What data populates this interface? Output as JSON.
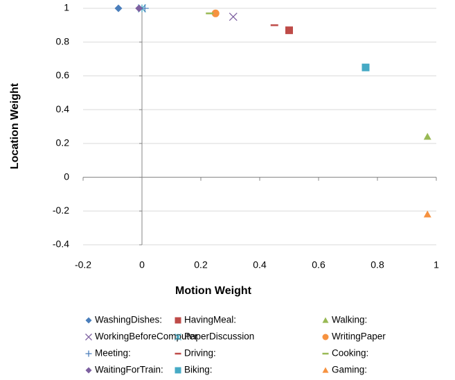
{
  "chart_data": {
    "type": "scatter",
    "x_label": "Motion Weight",
    "y_label": "Location Weight",
    "xlim": [
      -0.2,
      1
    ],
    "ylim": [
      -0.4,
      1
    ],
    "xticks": [
      -0.2,
      0,
      0.2,
      0.4,
      0.6,
      0.8,
      1
    ],
    "yticks": [
      -0.4,
      -0.2,
      0,
      0.2,
      0.4,
      0.6,
      0.8,
      1
    ],
    "grid": true,
    "series": [
      {
        "name": "WashingDishes:",
        "color": "#4a7ebb",
        "marker": "diamond",
        "x": [
          -0.08
        ],
        "values": [
          1
        ]
      },
      {
        "name": "HavingMeal:",
        "color": "#be4b48",
        "marker": "square",
        "x": [
          0.5
        ],
        "values": [
          0.87
        ]
      },
      {
        "name": "Walking:",
        "color": "#98b954",
        "marker": "triangle",
        "x": [
          0.97
        ],
        "values": [
          0.24
        ]
      },
      {
        "name": "WorkingBeforeComputer",
        "color": "#7d60a0",
        "marker": "x",
        "x": [
          0.31
        ],
        "values": [
          0.95
        ]
      },
      {
        "name": "PaperDiscussion",
        "color": "#46aac5",
        "marker": "star",
        "x": [
          0
        ],
        "values": [
          1
        ]
      },
      {
        "name": "WritingPaper",
        "color": "#f69240",
        "marker": "circle",
        "x": [
          0.25
        ],
        "values": [
          0.97
        ]
      },
      {
        "name": "Meeting:",
        "color": "#4a7ebb",
        "marker": "plus",
        "x": [
          0.01
        ],
        "values": [
          1
        ]
      },
      {
        "name": "Driving:",
        "color": "#be4b48",
        "marker": "dash",
        "x": [
          0.45
        ],
        "values": [
          0.9
        ]
      },
      {
        "name": "Cooking:",
        "color": "#98b954",
        "marker": "dash",
        "x": [
          0.23
        ],
        "values": [
          0.97
        ]
      },
      {
        "name": "WaitingForTrain:",
        "color": "#7d60a0",
        "marker": "diamond",
        "x": [
          -0.01
        ],
        "values": [
          1
        ]
      },
      {
        "name": "Biking:",
        "color": "#46aac5",
        "marker": "square",
        "x": [
          0.76
        ],
        "values": [
          0.65
        ]
      },
      {
        "name": "Gaming:",
        "color": "#f69240",
        "marker": "triangle",
        "x": [
          0.97
        ],
        "values": [
          -0.22
        ]
      }
    ]
  }
}
